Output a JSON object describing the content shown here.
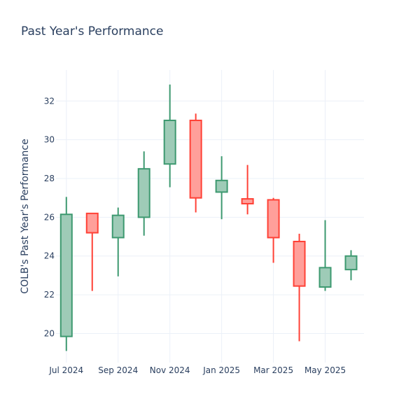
{
  "chart_data": {
    "type": "candlestick",
    "title": "Past Year's Performance",
    "ylabel": "COLB's Past Year's Performance",
    "xlabel": "",
    "ylim": [
      18.5,
      33.6
    ],
    "y_ticks": [
      20,
      22,
      24,
      26,
      28,
      30,
      32
    ],
    "x_ticks": [
      {
        "label": "Jul 2024",
        "month": 0
      },
      {
        "label": "Sep 2024",
        "month": 2
      },
      {
        "label": "Nov 2024",
        "month": 4
      },
      {
        "label": "Jan 2025",
        "month": 6
      },
      {
        "label": "Mar 2025",
        "month": 8
      },
      {
        "label": "May 2025",
        "month": 10
      }
    ],
    "xlim": [
      -0.4,
      11.5
    ],
    "grid": true,
    "colors": {
      "increasing": "#3d9970",
      "increasing_fill": "#9ecbb7",
      "decreasing": "#ff4136",
      "decreasing_fill": "#ff9f9a"
    },
    "candles": [
      {
        "month": 0,
        "open": 19.85,
        "high": 27.05,
        "low": 19.1,
        "close": 26.15
      },
      {
        "month": 1,
        "open": 26.2,
        "high": 26.2,
        "low": 22.2,
        "close": 25.2
      },
      {
        "month": 2,
        "open": 24.95,
        "high": 26.5,
        "low": 22.95,
        "close": 26.1
      },
      {
        "month": 3,
        "open": 26.0,
        "high": 29.4,
        "low": 25.05,
        "close": 28.5
      },
      {
        "month": 4,
        "open": 28.75,
        "high": 32.85,
        "low": 27.55,
        "close": 31.0
      },
      {
        "month": 5,
        "open": 31.0,
        "high": 31.35,
        "low": 26.25,
        "close": 27.0
      },
      {
        "month": 6,
        "open": 27.3,
        "high": 29.15,
        "low": 25.9,
        "close": 27.9
      },
      {
        "month": 7,
        "open": 26.95,
        "high": 28.7,
        "low": 26.15,
        "close": 26.7
      },
      {
        "month": 8,
        "open": 26.9,
        "high": 27.0,
        "low": 23.65,
        "close": 24.95
      },
      {
        "month": 9,
        "open": 24.75,
        "high": 25.15,
        "low": 19.6,
        "close": 22.45
      },
      {
        "month": 10,
        "open": 22.4,
        "high": 25.85,
        "low": 22.2,
        "close": 23.4
      },
      {
        "month": 11,
        "open": 23.3,
        "high": 24.3,
        "low": 22.75,
        "close": 24.0
      }
    ]
  }
}
